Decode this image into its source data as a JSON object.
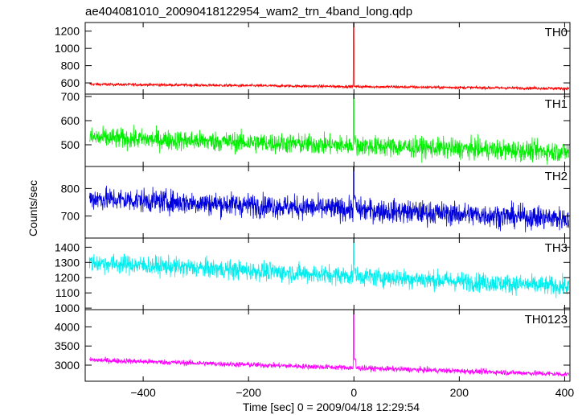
{
  "chart_data": {
    "type": "line",
    "title": "ae404081010_20090418122954_wam2_trn_4band_long.qdp",
    "xlabel": "Time [sec] 0 = 2009/04/18 12:29:54",
    "ylabel": "Counts/sec",
    "xlim": [
      -510,
      410
    ],
    "x_ticks": [
      -400,
      -200,
      0,
      200,
      400
    ],
    "x_tick_labels": [
      "−400",
      "−200",
      "0",
      "200",
      "400"
    ],
    "panels": [
      {
        "name": "TH0",
        "color": "#ff0000",
        "ylim": [
          470,
          1300
        ],
        "y_ticks": [
          600,
          800,
          1000,
          1200
        ],
        "baseline_start": 585,
        "baseline_end": 535,
        "noise": 12,
        "spike_peak": 1300,
        "spike_decay": 560
      },
      {
        "name": "TH1",
        "color": "#00ee00",
        "ylim": [
          410,
          710
        ],
        "y_ticks": [
          500,
          600,
          700
        ],
        "baseline_start": 530,
        "baseline_end": 470,
        "noise": 30,
        "spike_peak": 710,
        "spike_decay": 520
      },
      {
        "name": "TH2",
        "color": "#0000dd",
        "ylim": [
          620,
          880
        ],
        "y_ticks": [
          700,
          800
        ],
        "baseline_start": 765,
        "baseline_end": 690,
        "noise": 30,
        "spike_peak": 880,
        "spike_decay": 760
      },
      {
        "name": "TH3",
        "color": "#00eeee",
        "ylim": [
          990,
          1460
        ],
        "y_ticks": [
          1000,
          1100,
          1200,
          1300,
          1400
        ],
        "baseline_start": 1300,
        "baseline_end": 1140,
        "noise": 45,
        "spike_peak": 1460,
        "spike_decay": 1260
      },
      {
        "name": "TH0123",
        "color": "#ff00ff",
        "ylim": [
          2580,
          4450
        ],
        "y_ticks": [
          3000,
          3500,
          4000
        ],
        "baseline_start": 3140,
        "baseline_end": 2760,
        "noise": 50,
        "spike_peak": 4450,
        "spike_decay": 3150
      }
    ]
  }
}
